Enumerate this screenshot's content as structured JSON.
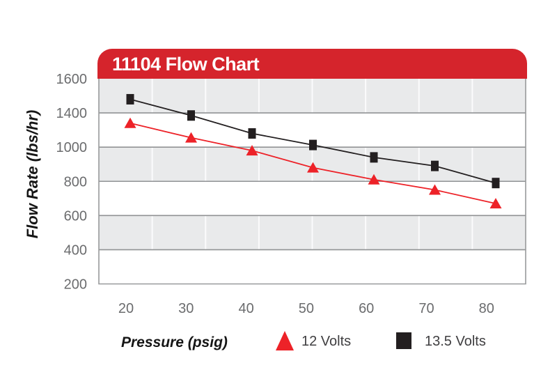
{
  "chart_data": {
    "type": "line",
    "title": "11104 Flow Chart",
    "xlabel": "Pressure (psig)",
    "ylabel": "Flow Rate (lbs/hr)",
    "x": [
      20,
      30,
      40,
      50,
      60,
      70,
      80
    ],
    "x_tick_labels": [
      "20",
      "30",
      "40",
      "50",
      "60",
      "70",
      "80"
    ],
    "y_tick_labels": [
      "1600",
      "1400",
      "1000",
      "800",
      "600",
      "400",
      "200"
    ],
    "y_gridline_values": [
      1600,
      1400,
      1000,
      800,
      600,
      400,
      200
    ],
    "grid": true,
    "legend_position": "bottom",
    "series": [
      {
        "name": "12 Volts",
        "marker": "triangle",
        "color": "#ed2228",
        "values": [
          1280,
          1110,
          980,
          880,
          810,
          750,
          670
        ]
      },
      {
        "name": "13.5 Volts",
        "marker": "square",
        "color": "#231f20",
        "values": [
          1480,
          1370,
          1160,
          1025,
          940,
          890,
          790
        ]
      }
    ]
  },
  "colors": {
    "banner_red": "#d5242c",
    "series_red": "#ed2228",
    "series_black": "#231f20",
    "band_gray": "#e9eaeb",
    "h_gridline": "#909294",
    "plot_border": "#98999b",
    "tick_label": "#6b6c6e",
    "legend_text": "#3f3e40"
  }
}
